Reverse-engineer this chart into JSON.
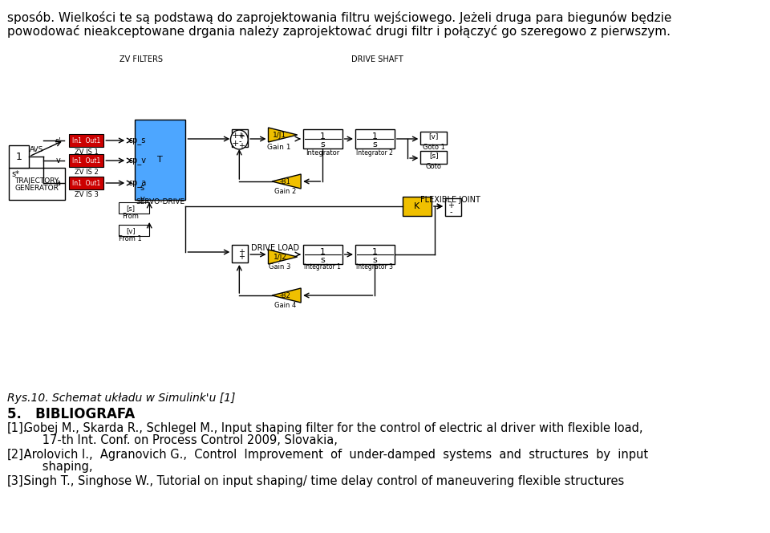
{
  "bg_color": "#ffffff",
  "top_text_line1": "sposób. Wielkości te są podstawą do zaprojektowania filtru wejściowego. Jeżeli druga para biegunów będzie",
  "top_text_line2": "powodować nieakceptowane drgania należy zaprojektować drugi filtr i połączyć go szeregowo z pierwszym.",
  "caption": "Rys.10. Schemat układu w Simulink'u [1]",
  "section_header": "5.   BIBLIOGRAFA",
  "section_header_bold": "5.   BIBLIOGRAFA",
  "ref1_label": "[1].",
  "ref1_line1": " Gobej M., Skarda R., Schlegel M., Input shaping filter for the control of electric al driver with flexible load,",
  "ref1_line2": "      17-th Int. Conf. on Process Control 2009, Slovakia,",
  "ref2_label": "[2].",
  "ref2_line1": " Arolovich I.,  Agranovich G.,  Control  Improvement  of  under-damped  systems  and  structures  by  input",
  "ref2_line2": "      shaping,",
  "ref3_label": "[3].",
  "ref3_line1": " Singh T., Singhose W., Tutorial on input shaping/ time delay control of maneuvering flexible structures",
  "font_size_body": 11,
  "font_size_caption": 10,
  "font_size_section": 12,
  "font_size_ref": 10.5
}
